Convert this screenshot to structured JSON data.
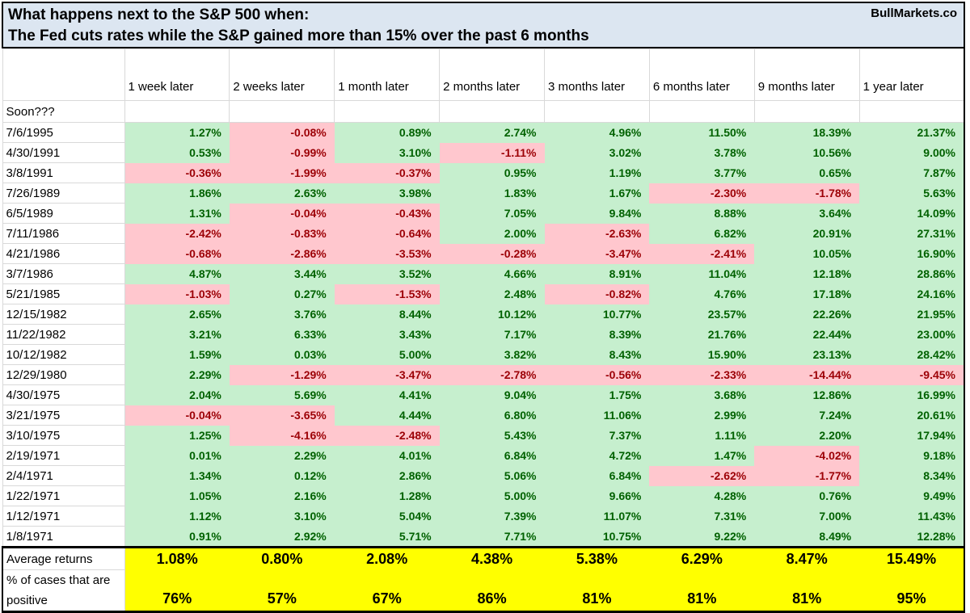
{
  "header": {
    "title_line1": "What happens next to the S&P 500 when:",
    "title_line2": "The Fed cuts rates while the S&P gained more than 15% over the past 6 months",
    "brand": "BullMarkets.co"
  },
  "chart_data": {
    "type": "table",
    "title": "What happens next to the S&P 500 when: The Fed cuts rates while the S&P gained more than 15% over the past 6 months",
    "corner_label": "",
    "columns": [
      "1 week later",
      "2 weeks later",
      "1 month later",
      "2 months later",
      "3 months later",
      "6 months later",
      "9 months later",
      "1 year later"
    ],
    "pending_row_label": "Soon???",
    "rows": [
      {
        "date": "7/6/1995",
        "values": [
          "1.27%",
          "-0.08%",
          "0.89%",
          "2.74%",
          "4.96%",
          "11.50%",
          "18.39%",
          "21.37%"
        ]
      },
      {
        "date": "4/30/1991",
        "values": [
          "0.53%",
          "-0.99%",
          "3.10%",
          "-1.11%",
          "3.02%",
          "3.78%",
          "10.56%",
          "9.00%"
        ]
      },
      {
        "date": "3/8/1991",
        "values": [
          "-0.36%",
          "-1.99%",
          "-0.37%",
          "0.95%",
          "1.19%",
          "3.77%",
          "0.65%",
          "7.87%"
        ]
      },
      {
        "date": "7/26/1989",
        "values": [
          "1.86%",
          "2.63%",
          "3.98%",
          "1.83%",
          "1.67%",
          "-2.30%",
          "-1.78%",
          "5.63%"
        ]
      },
      {
        "date": "6/5/1989",
        "values": [
          "1.31%",
          "-0.04%",
          "-0.43%",
          "7.05%",
          "9.84%",
          "8.88%",
          "3.64%",
          "14.09%"
        ]
      },
      {
        "date": "7/11/1986",
        "values": [
          "-2.42%",
          "-0.83%",
          "-0.64%",
          "2.00%",
          "-2.63%",
          "6.82%",
          "20.91%",
          "27.31%"
        ]
      },
      {
        "date": "4/21/1986",
        "values": [
          "-0.68%",
          "-2.86%",
          "-3.53%",
          "-0.28%",
          "-3.47%",
          "-2.41%",
          "10.05%",
          "16.90%"
        ]
      },
      {
        "date": "3/7/1986",
        "values": [
          "4.87%",
          "3.44%",
          "3.52%",
          "4.66%",
          "8.91%",
          "11.04%",
          "12.18%",
          "28.86%"
        ]
      },
      {
        "date": "5/21/1985",
        "values": [
          "-1.03%",
          "0.27%",
          "-1.53%",
          "2.48%",
          "-0.82%",
          "4.76%",
          "17.18%",
          "24.16%"
        ]
      },
      {
        "date": "12/15/1982",
        "values": [
          "2.65%",
          "3.76%",
          "8.44%",
          "10.12%",
          "10.77%",
          "23.57%",
          "22.26%",
          "21.95%"
        ]
      },
      {
        "date": "11/22/1982",
        "values": [
          "3.21%",
          "6.33%",
          "3.43%",
          "7.17%",
          "8.39%",
          "21.76%",
          "22.44%",
          "23.00%"
        ]
      },
      {
        "date": "10/12/1982",
        "values": [
          "1.59%",
          "0.03%",
          "5.00%",
          "3.82%",
          "8.43%",
          "15.90%",
          "23.13%",
          "28.42%"
        ]
      },
      {
        "date": "12/29/1980",
        "values": [
          "2.29%",
          "-1.29%",
          "-3.47%",
          "-2.78%",
          "-0.56%",
          "-2.33%",
          "-14.44%",
          "-9.45%"
        ]
      },
      {
        "date": "4/30/1975",
        "values": [
          "2.04%",
          "5.69%",
          "4.41%",
          "9.04%",
          "1.75%",
          "3.68%",
          "12.86%",
          "16.99%"
        ]
      },
      {
        "date": "3/21/1975",
        "values": [
          "-0.04%",
          "-3.65%",
          "4.44%",
          "6.80%",
          "11.06%",
          "2.99%",
          "7.24%",
          "20.61%"
        ]
      },
      {
        "date": "3/10/1975",
        "values": [
          "1.25%",
          "-4.16%",
          "-2.48%",
          "5.43%",
          "7.37%",
          "1.11%",
          "2.20%",
          "17.94%"
        ]
      },
      {
        "date": "2/19/1971",
        "values": [
          "0.01%",
          "2.29%",
          "4.01%",
          "6.84%",
          "4.72%",
          "1.47%",
          "-4.02%",
          "9.18%"
        ]
      },
      {
        "date": "2/4/1971",
        "values": [
          "1.34%",
          "0.12%",
          "2.86%",
          "5.06%",
          "6.84%",
          "-2.62%",
          "-1.77%",
          "8.34%"
        ]
      },
      {
        "date": "1/22/1971",
        "values": [
          "1.05%",
          "2.16%",
          "1.28%",
          "5.00%",
          "9.66%",
          "4.28%",
          "0.76%",
          "9.49%"
        ]
      },
      {
        "date": "1/12/1971",
        "values": [
          "1.12%",
          "3.10%",
          "5.04%",
          "7.39%",
          "11.07%",
          "7.31%",
          "7.00%",
          "11.43%"
        ]
      },
      {
        "date": "1/8/1971",
        "values": [
          "0.91%",
          "2.92%",
          "5.71%",
          "7.71%",
          "10.75%",
          "9.22%",
          "8.49%",
          "12.28%"
        ]
      }
    ],
    "summary_rows": [
      {
        "label": "Average returns",
        "values": [
          "1.08%",
          "0.80%",
          "2.08%",
          "4.38%",
          "5.38%",
          "6.29%",
          "8.47%",
          "15.49%"
        ]
      },
      {
        "label": "% of cases that are positive",
        "values": [
          "76%",
          "57%",
          "67%",
          "86%",
          "81%",
          "81%",
          "81%",
          "95%"
        ]
      }
    ],
    "legend": {
      "positive_cells": "green background, dark green text",
      "negative_cells": "pink background, dark red text",
      "summary_cells": "yellow background, bold black text"
    },
    "colors": {
      "title_bg": "#dce6f1",
      "positive_bg": "#c6efce",
      "positive_text": "#006100",
      "negative_bg": "#ffc7ce",
      "negative_text": "#9c0006",
      "summary_bg": "#ffff00",
      "grid_line": "#d9d9d9",
      "border": "#000000"
    }
  }
}
